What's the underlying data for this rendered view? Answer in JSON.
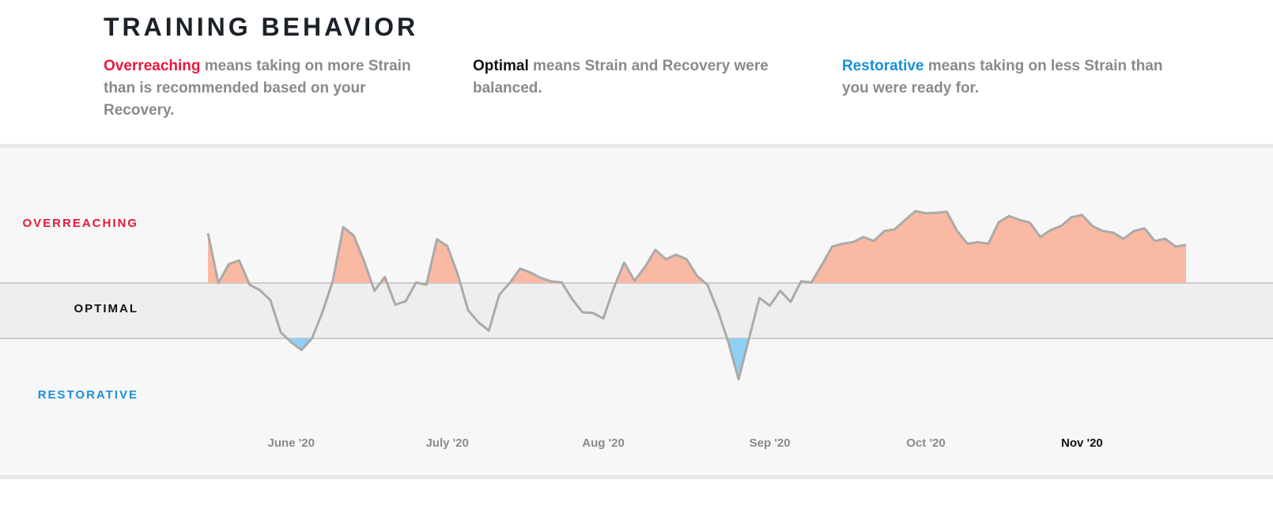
{
  "header": {
    "title": "TRAINING BEHAVIOR",
    "definitions": [
      {
        "term": "Overreaching",
        "text": "means taking on more Strain than is recommended based on your Recovery.",
        "color": "#e8173d"
      },
      {
        "term": "Optimal",
        "text": "means Strain and Recovery were balanced.",
        "color": "#111111"
      },
      {
        "term": "Restorative",
        "text": "means taking on less Strain than you were ready for.",
        "color": "#1a8fd6"
      }
    ]
  },
  "chart_data": {
    "type": "line",
    "color": "#aaaaaa",
    "categories": [
      null,
      null,
      null,
      null,
      null,
      null,
      null,
      null,
      "June '20",
      null,
      null,
      null,
      null,
      null,
      null,
      null,
      null,
      null,
      null,
      null,
      null,
      null,
      null,
      "July '20",
      null,
      null,
      null,
      null,
      null,
      null,
      null,
      null,
      null,
      null,
      null,
      null,
      null,
      null,
      "Aug '20",
      null,
      null,
      null,
      null,
      null,
      null,
      null,
      null,
      null,
      null,
      null,
      null,
      null,
      null,
      null,
      "Sep '20",
      null,
      null,
      null,
      null,
      null,
      null,
      null,
      null,
      null,
      null,
      null,
      null,
      null,
      null,
      "Oct '20",
      null,
      null,
      null,
      null,
      null,
      null,
      null,
      null,
      null,
      null,
      null,
      null,
      null,
      null,
      "Nov '20",
      null,
      null,
      null,
      null,
      null,
      null,
      null,
      null,
      null,
      null
    ],
    "values": [
      140,
      50,
      84,
      91,
      47,
      37,
      19,
      -39,
      -57,
      -71,
      -50,
      -3,
      54,
      151,
      136,
      90,
      36,
      61,
      11,
      17,
      51,
      47,
      129,
      117,
      66,
      1,
      -21,
      -36,
      29,
      50,
      76,
      69,
      59,
      53,
      51,
      21,
      -3,
      -4,
      -14,
      41,
      87,
      54,
      79,
      110,
      93,
      101,
      93,
      63,
      47,
      0,
      -56,
      -124,
      -50,
      23,
      9,
      36,
      16,
      53,
      51,
      83,
      116,
      121,
      124,
      133,
      126,
      144,
      147,
      164,
      180,
      176,
      177,
      179,
      144,
      121,
      124,
      121,
      160,
      171,
      164,
      159,
      133,
      146,
      153,
      169,
      173,
      153,
      144,
      141,
      130,
      144,
      149,
      126,
      130,
      116,
      119
    ],
    "ylim": [
      -150,
      200
    ],
    "bands": [
      {
        "name": "OVERREACHING",
        "range": [
          50,
          200
        ],
        "color": "#e8173d",
        "fill": "#f9b9a3"
      },
      {
        "name": "OPTIMAL",
        "range": [
          -50,
          50
        ],
        "color": "#111111",
        "fill": "#eeeeee"
      },
      {
        "name": "RESTORATIVE",
        "range": [
          -150,
          -50
        ],
        "color": "#1a8fd6",
        "fill": "#8fd0f4"
      }
    ]
  }
}
